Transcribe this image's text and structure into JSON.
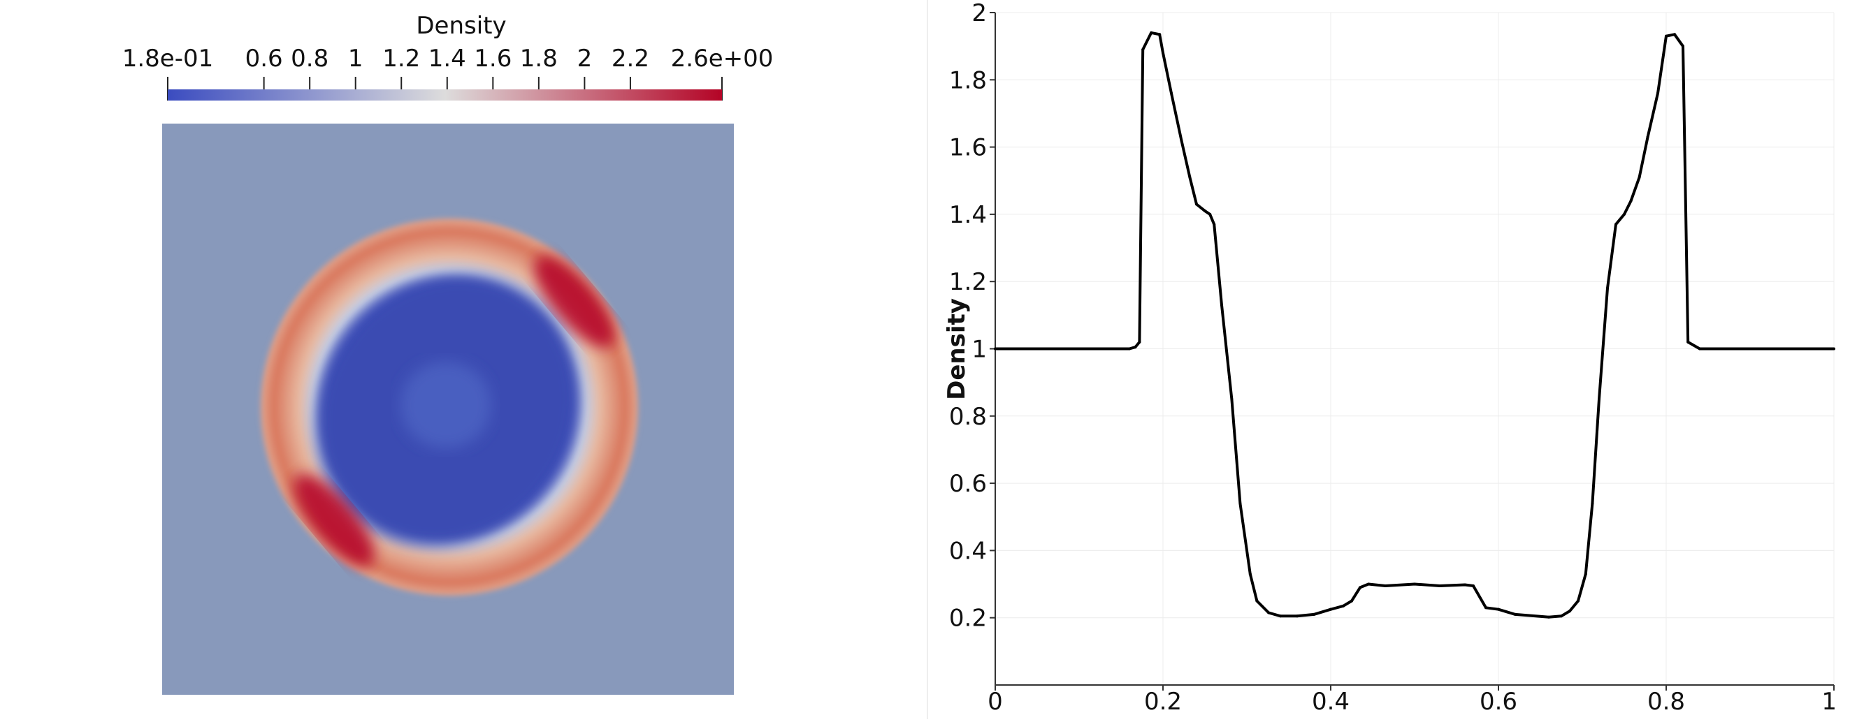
{
  "colorbar": {
    "title": "Density",
    "min_label": "1.8e-01",
    "max_label": "2.6e+00",
    "min": 0.18,
    "max": 2.6,
    "ticks": [
      {
        "value": 0.6,
        "label": "0.6"
      },
      {
        "value": 0.8,
        "label": "0.8"
      },
      {
        "value": 1.0,
        "label": "1"
      },
      {
        "value": 1.2,
        "label": "1.2"
      },
      {
        "value": 1.4,
        "label": "1.4"
      },
      {
        "value": 1.6,
        "label": "1.6"
      },
      {
        "value": 1.8,
        "label": "1.8"
      },
      {
        "value": 2.0,
        "label": "2"
      },
      {
        "value": 2.2,
        "label": "2.2"
      }
    ],
    "colormap": [
      "#3b4cc0",
      "#dddcdc",
      "#b40426"
    ]
  },
  "field_view": {
    "background_color": "#8899bb"
  },
  "chart_data": {
    "type": "line",
    "ylabel": "Density",
    "xlim": [
      0,
      1
    ],
    "ylim": [
      0,
      2
    ],
    "grid": true,
    "x_ticks": [
      {
        "value": 0,
        "label": "0"
      },
      {
        "value": 0.2,
        "label": "0.2"
      },
      {
        "value": 0.4,
        "label": "0.4"
      },
      {
        "value": 0.6,
        "label": "0.6"
      },
      {
        "value": 0.8,
        "label": "0.8"
      },
      {
        "value": 1,
        "label": "1"
      }
    ],
    "y_ticks": [
      {
        "value": 0.2,
        "label": "0.2"
      },
      {
        "value": 0.4,
        "label": "0.4"
      },
      {
        "value": 0.6,
        "label": "0.6"
      },
      {
        "value": 0.8,
        "label": "0.8"
      },
      {
        "value": 1.0,
        "label": "1"
      },
      {
        "value": 1.2,
        "label": "1.2"
      },
      {
        "value": 1.4,
        "label": "1.4"
      },
      {
        "value": 1.6,
        "label": "1.6"
      },
      {
        "value": 1.8,
        "label": "1.8"
      },
      {
        "value": 2.0,
        "label": "2"
      }
    ],
    "series": [
      {
        "color": "#000000",
        "points": [
          [
            0.0,
            1.0
          ],
          [
            0.16,
            1.0
          ],
          [
            0.167,
            1.005
          ],
          [
            0.172,
            1.02
          ],
          [
            0.176,
            1.89
          ],
          [
            0.186,
            1.94
          ],
          [
            0.196,
            1.935
          ],
          [
            0.2,
            1.88
          ],
          [
            0.21,
            1.76
          ],
          [
            0.222,
            1.62
          ],
          [
            0.232,
            1.51
          ],
          [
            0.24,
            1.43
          ],
          [
            0.25,
            1.41
          ],
          [
            0.256,
            1.4
          ],
          [
            0.261,
            1.37
          ],
          [
            0.27,
            1.13
          ],
          [
            0.282,
            0.85
          ],
          [
            0.292,
            0.54
          ],
          [
            0.304,
            0.33
          ],
          [
            0.312,
            0.25
          ],
          [
            0.326,
            0.215
          ],
          [
            0.34,
            0.205
          ],
          [
            0.36,
            0.205
          ],
          [
            0.38,
            0.21
          ],
          [
            0.4,
            0.225
          ],
          [
            0.415,
            0.235
          ],
          [
            0.425,
            0.25
          ],
          [
            0.435,
            0.29
          ],
          [
            0.445,
            0.3
          ],
          [
            0.465,
            0.295
          ],
          [
            0.5,
            0.3
          ],
          [
            0.53,
            0.295
          ],
          [
            0.56,
            0.298
          ],
          [
            0.57,
            0.295
          ],
          [
            0.585,
            0.23
          ],
          [
            0.6,
            0.225
          ],
          [
            0.62,
            0.21
          ],
          [
            0.66,
            0.202
          ],
          [
            0.675,
            0.205
          ],
          [
            0.685,
            0.22
          ],
          [
            0.695,
            0.25
          ],
          [
            0.704,
            0.33
          ],
          [
            0.712,
            0.54
          ],
          [
            0.72,
            0.85
          ],
          [
            0.73,
            1.18
          ],
          [
            0.74,
            1.37
          ],
          [
            0.75,
            1.4
          ],
          [
            0.758,
            1.44
          ],
          [
            0.768,
            1.51
          ],
          [
            0.778,
            1.63
          ],
          [
            0.79,
            1.76
          ],
          [
            0.8,
            1.93
          ],
          [
            0.81,
            1.935
          ],
          [
            0.82,
            1.9
          ],
          [
            0.826,
            1.02
          ],
          [
            0.84,
            1.0
          ],
          [
            1.0,
            1.0
          ]
        ]
      }
    ]
  }
}
